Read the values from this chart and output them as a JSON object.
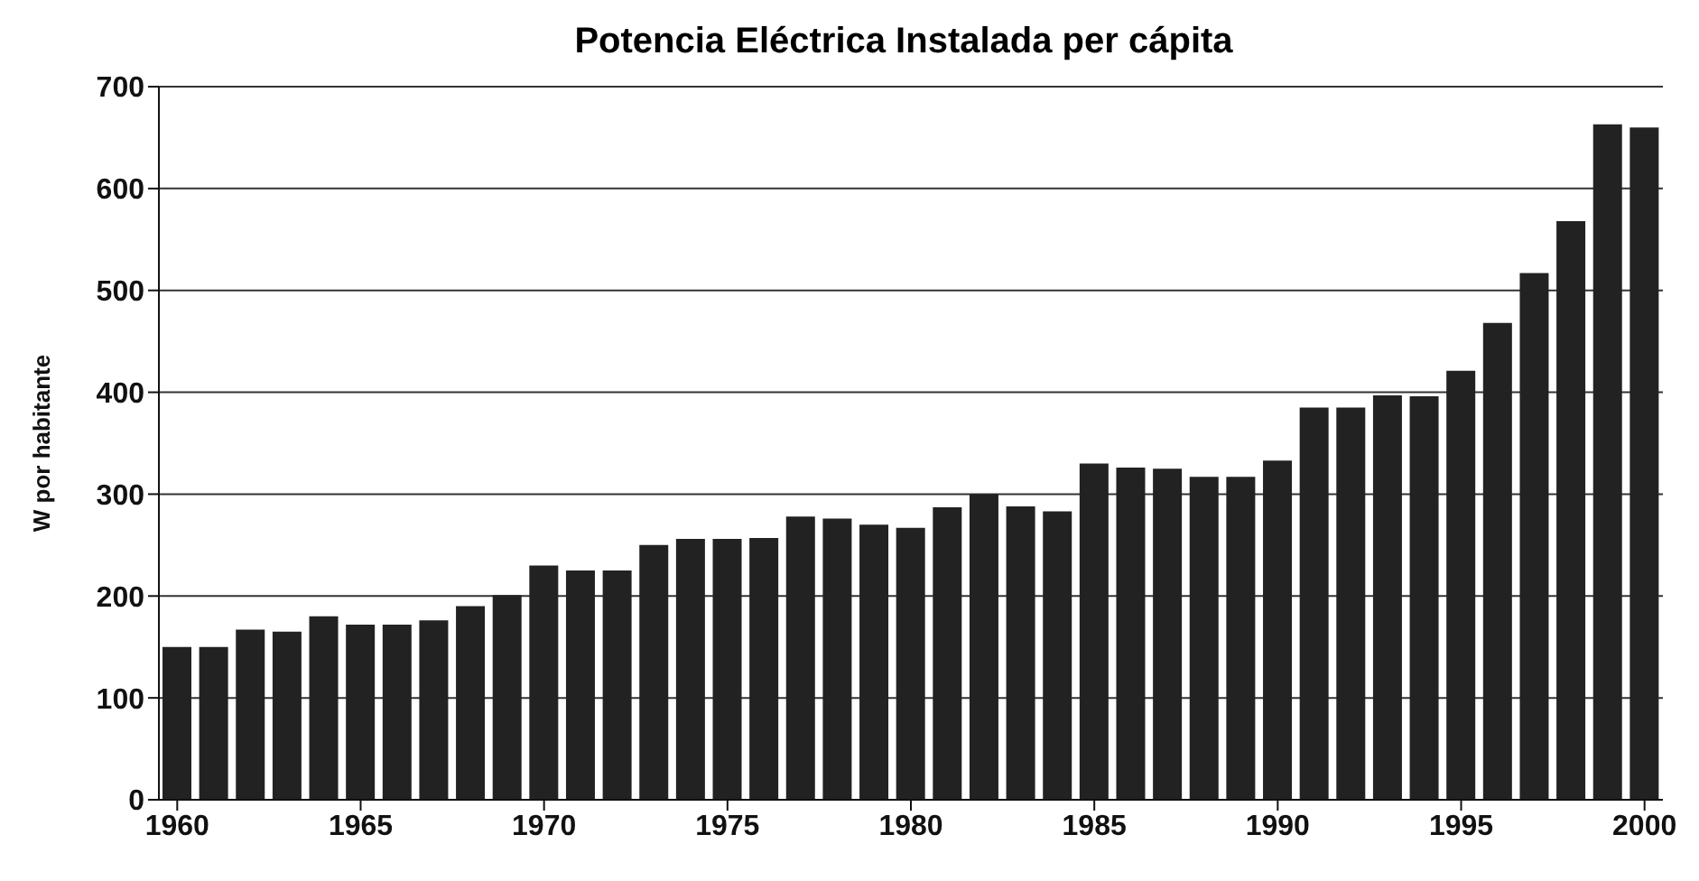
{
  "chart_data": {
    "type": "bar",
    "title": "Potencia Eléctrica Instalada per cápita",
    "ylabel": "W por habitante",
    "x": [
      1960,
      1961,
      1962,
      1963,
      1964,
      1965,
      1966,
      1967,
      1968,
      1969,
      1970,
      1971,
      1972,
      1973,
      1974,
      1975,
      1976,
      1977,
      1978,
      1979,
      1980,
      1981,
      1982,
      1983,
      1984,
      1985,
      1986,
      1987,
      1988,
      1989,
      1990,
      1991,
      1992,
      1993,
      1994,
      1995,
      1996,
      1997,
      1998,
      1999,
      2000
    ],
    "values": [
      150,
      150,
      167,
      165,
      180,
      172,
      172,
      176,
      190,
      201,
      230,
      225,
      225,
      250,
      256,
      256,
      257,
      278,
      276,
      270,
      267,
      287,
      300,
      288,
      283,
      330,
      326,
      325,
      317,
      317,
      333,
      385,
      385,
      397,
      396,
      421,
      468,
      517,
      568,
      663,
      660
    ],
    "color": "#222222",
    "xlim": [
      1959.5,
      2000.5
    ],
    "xticks": [
      1960,
      1965,
      1970,
      1975,
      1980,
      1985,
      1990,
      1995,
      2000
    ],
    "ylim": [
      0,
      700
    ],
    "yticks": [
      0,
      100,
      200,
      300,
      400,
      500,
      600,
      700
    ],
    "grid": "y"
  }
}
